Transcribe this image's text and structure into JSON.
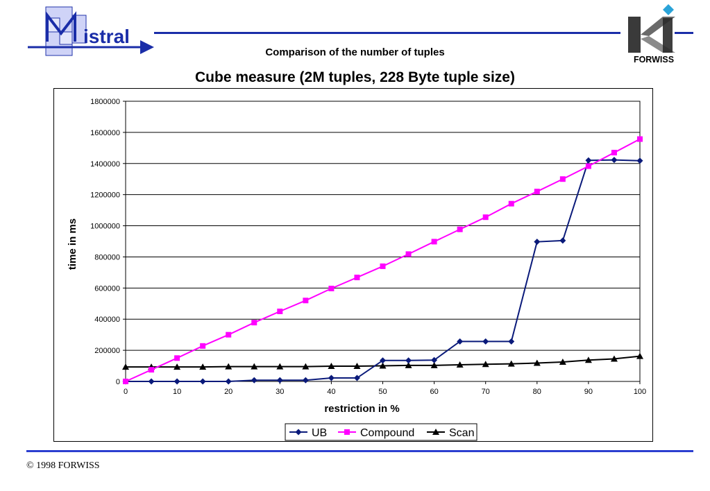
{
  "header": {
    "logo_text": "istral",
    "logo_initial": "M",
    "subtitle": "Comparison of the number of tuples",
    "brand": "FORWISS"
  },
  "footer": {
    "copyright": "© 1998 FORWISS"
  },
  "colors": {
    "rule": "#1a2da8",
    "ub": "#0a1a7a",
    "compound": "#ff00ff",
    "scan": "#000000"
  },
  "chart_data": {
    "type": "line",
    "title": "Cube measure (2M tuples, 228 Byte tuple size)",
    "xlabel": "restriction in %",
    "ylabel": "time in ms",
    "xlim": [
      0,
      100
    ],
    "ylim": [
      0,
      1800000
    ],
    "x_ticks": [
      "0",
      "10",
      "20",
      "30",
      "40",
      "50",
      "60",
      "70",
      "80",
      "90",
      "100"
    ],
    "y_ticks": [
      "0",
      "200000",
      "400000",
      "600000",
      "800000",
      "1000000",
      "1200000",
      "1400000",
      "1600000",
      "1800000"
    ],
    "grid": "horizontal",
    "legend_position": "bottom",
    "x": [
      0,
      5,
      10,
      15,
      20,
      25,
      30,
      35,
      40,
      45,
      50,
      55,
      60,
      65,
      70,
      75,
      80,
      85,
      90,
      95,
      100
    ],
    "series": [
      {
        "name": "UB",
        "color": "#0a1a7a",
        "marker": "diamond",
        "values": [
          0,
          0,
          0,
          0,
          0,
          8000,
          8000,
          8000,
          22000,
          22000,
          135000,
          135000,
          137000,
          257000,
          257000,
          257000,
          897000,
          905000,
          1420000,
          1423000,
          1418000
        ]
      },
      {
        "name": "Compound",
        "color": "#ff00ff",
        "marker": "square",
        "values": [
          0,
          75000,
          150000,
          228000,
          300000,
          378000,
          450000,
          520000,
          597000,
          668000,
          740000,
          818000,
          898000,
          977000,
          1055000,
          1142000,
          1220000,
          1300000,
          1383000,
          1470000,
          1557000
        ]
      },
      {
        "name": "Scan",
        "color": "#000000",
        "marker": "triangle",
        "values": [
          93000,
          93000,
          93000,
          93000,
          95000,
          95000,
          95000,
          95000,
          98000,
          98000,
          100000,
          103000,
          103000,
          107000,
          110000,
          113000,
          118000,
          125000,
          137000,
          145000,
          162000
        ]
      }
    ]
  }
}
